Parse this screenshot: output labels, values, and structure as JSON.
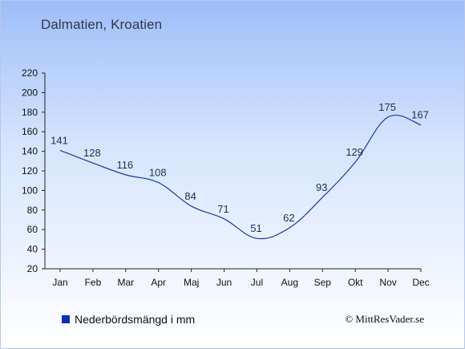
{
  "page": {
    "title": "Dalmatien, Kroatien",
    "credit": "© MittResVader.se"
  },
  "chart_data": {
    "type": "line",
    "title": "",
    "xlabel": "",
    "ylabel": "",
    "categories": [
      "Jan",
      "Feb",
      "Mar",
      "Apr",
      "Maj",
      "Jun",
      "Jul",
      "Aug",
      "Sep",
      "Okt",
      "Nov",
      "Dec"
    ],
    "series": [
      {
        "name": "Nederbördsmängd i mm",
        "values": [
          141,
          128,
          116,
          108,
          84,
          71,
          51,
          62,
          93,
          129,
          175,
          167
        ],
        "color": "#1e36a8"
      }
    ],
    "ylim": [
      20,
      220
    ],
    "yticks": [
      20,
      40,
      60,
      80,
      100,
      120,
      140,
      160,
      180,
      200,
      220
    ],
    "legend_position": "bottom-left",
    "grid": false
  }
}
